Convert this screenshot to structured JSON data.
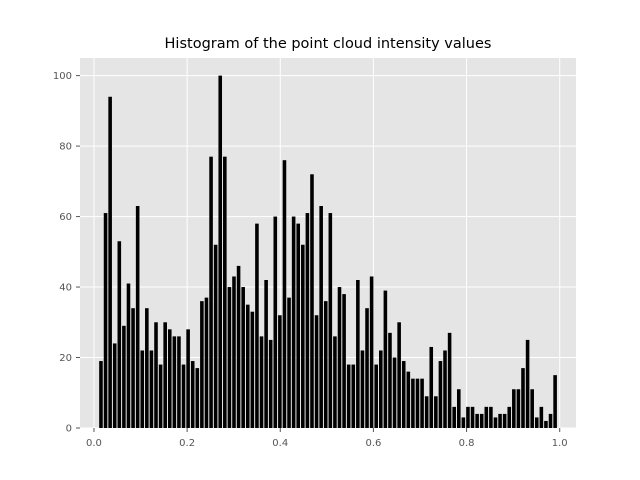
{
  "chart_data": {
    "type": "bar",
    "title": "Histogram of the point cloud intensity values",
    "xlabel": "",
    "ylabel": "",
    "xlim": [
      -0.03,
      1.035
    ],
    "ylim": [
      0,
      105
    ],
    "grid": true,
    "colors": {
      "plot_background": "#e5e5e5",
      "grid": "#ffffff",
      "bar": "#000000",
      "tick": "#555555"
    },
    "x_ticks": [
      {
        "value": 0.0,
        "label": "0.0"
      },
      {
        "value": 0.2,
        "label": "0.2"
      },
      {
        "value": 0.4,
        "label": "0.4"
      },
      {
        "value": 0.6,
        "label": "0.6"
      },
      {
        "value": 0.8,
        "label": "0.8"
      },
      {
        "value": 1.0,
        "label": "1.0"
      }
    ],
    "y_ticks": [
      {
        "value": 0,
        "label": "0"
      },
      {
        "value": 20,
        "label": "20"
      },
      {
        "value": 40,
        "label": "40"
      },
      {
        "value": 60,
        "label": "60"
      },
      {
        "value": 80,
        "label": "80"
      },
      {
        "value": 100,
        "label": "100"
      }
    ],
    "bin_start": 0.015,
    "bin_width": 0.00985,
    "bar_fraction": 0.78,
    "values": [
      19,
      61,
      94,
      24,
      53,
      29,
      41,
      34,
      63,
      22,
      34,
      22,
      30,
      18,
      30,
      28,
      26,
      26,
      18,
      28,
      19,
      17,
      36,
      37,
      77,
      52,
      100,
      77,
      40,
      43,
      46,
      40,
      35,
      33,
      58,
      26,
      42,
      25,
      60,
      32,
      76,
      37,
      60,
      58,
      52,
      61,
      72,
      32,
      63,
      36,
      61,
      26,
      40,
      38,
      18,
      18,
      42,
      22,
      34,
      43,
      18,
      22,
      39,
      27,
      20,
      30,
      19,
      16,
      14,
      14,
      14,
      9,
      23,
      9,
      19,
      22,
      27,
      6,
      11,
      3,
      6,
      6,
      4,
      4,
      6,
      6,
      3,
      4,
      4,
      6,
      11,
      11,
      17,
      25,
      11,
      3,
      6,
      2,
      4,
      15
    ]
  }
}
